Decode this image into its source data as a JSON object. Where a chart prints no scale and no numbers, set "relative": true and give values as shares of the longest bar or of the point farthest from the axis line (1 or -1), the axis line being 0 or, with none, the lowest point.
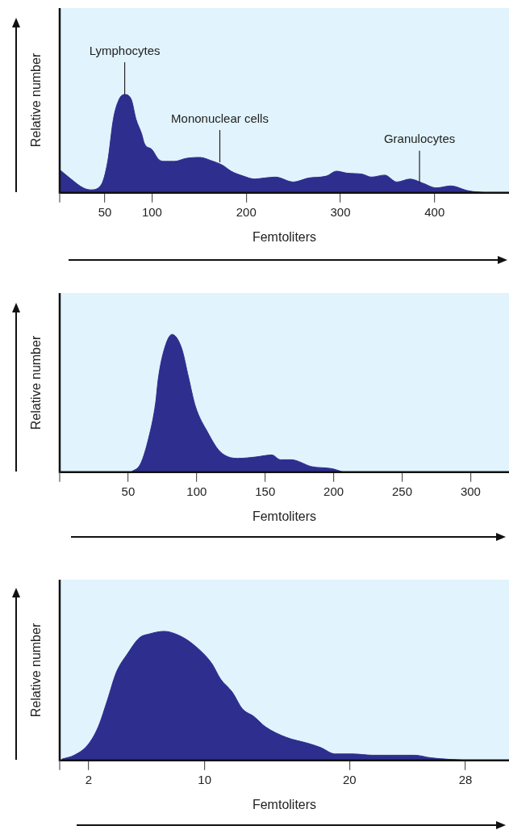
{
  "chart_data": [
    {
      "type": "area",
      "relative": true,
      "xlabel": "Femtoliters",
      "ylabel": "Relative number",
      "legend": false,
      "grid": false,
      "xlim": [
        2,
        479
      ],
      "xticks": [
        50,
        100,
        200,
        300,
        400
      ],
      "annotations": [
        {
          "text": "Lymphocytes",
          "x": 71,
          "y": 1.0
        },
        {
          "text": "Mononuclear cells",
          "x": 172,
          "y": 0.31
        },
        {
          "text": "Granulocytes",
          "x": 384,
          "y": 0.1
        }
      ],
      "series": [
        {
          "color": "#2e2e8f",
          "x": [
            2,
            14,
            27,
            35,
            46,
            53,
            59,
            65,
            71,
            78,
            83,
            89,
            92,
            100,
            107,
            114,
            124,
            136,
            151,
            162,
            175,
            184,
            197,
            209,
            219,
            231,
            250,
            266,
            285,
            296,
            307,
            323,
            333,
            347,
            360,
            374,
            387,
            402,
            417,
            436,
            456
          ],
          "values": [
            0.235,
            0.14,
            0.05,
            0.03,
            0.08,
            0.32,
            0.75,
            0.95,
            1.0,
            0.95,
            0.75,
            0.6,
            0.5,
            0.44,
            0.34,
            0.32,
            0.32,
            0.35,
            0.36,
            0.33,
            0.28,
            0.22,
            0.17,
            0.14,
            0.15,
            0.16,
            0.11,
            0.15,
            0.17,
            0.22,
            0.2,
            0.19,
            0.16,
            0.18,
            0.11,
            0.14,
            0.1,
            0.05,
            0.07,
            0.02,
            0
          ]
        }
      ]
    },
    {
      "type": "area",
      "relative": true,
      "xlabel": "Femtoliters",
      "ylabel": "Relative number",
      "legend": false,
      "grid": false,
      "xlim": [
        0,
        328
      ],
      "xticks": [
        50,
        100,
        150,
        200,
        250,
        300
      ],
      "series": [
        {
          "color": "#2e2e8f",
          "x": [
            52,
            59,
            65,
            70,
            72,
            76,
            82,
            89,
            94,
            99,
            108,
            117,
            130,
            143,
            155,
            161,
            169,
            184,
            199,
            207
          ],
          "values": [
            0,
            0.06,
            0.25,
            0.5,
            0.68,
            0.88,
            1.0,
            0.9,
            0.69,
            0.48,
            0.29,
            0.15,
            0.1,
            0.11,
            0.125,
            0.09,
            0.09,
            0.04,
            0.025,
            0
          ]
        }
      ]
    },
    {
      "type": "area",
      "relative": true,
      "xlabel": "Femtoliters",
      "ylabel": "Relative number",
      "legend": false,
      "grid": false,
      "xlim": [
        0,
        31
      ],
      "xticks": [
        2,
        10,
        20,
        28
      ],
      "series": [
        {
          "color": "#2e2e8f",
          "x": [
            0.15,
            1.0,
            1.94,
            2.66,
            3.3,
            3.9,
            4.7,
            5.5,
            6.2,
            7.2,
            8.2,
            9.2,
            10.5,
            11.1,
            11.9,
            12.6,
            13.4,
            14.2,
            15.6,
            17.2,
            18.0,
            19.0,
            20.2,
            21.6,
            22.5,
            24.5,
            25.6,
            28.1
          ],
          "values": [
            0.01,
            0.04,
            0.12,
            0.26,
            0.47,
            0.68,
            0.83,
            0.95,
            0.98,
            1.0,
            0.97,
            0.9,
            0.75,
            0.63,
            0.53,
            0.4,
            0.34,
            0.26,
            0.18,
            0.13,
            0.1,
            0.05,
            0.05,
            0.04,
            0.04,
            0.04,
            0.02,
            0
          ]
        }
      ]
    }
  ]
}
